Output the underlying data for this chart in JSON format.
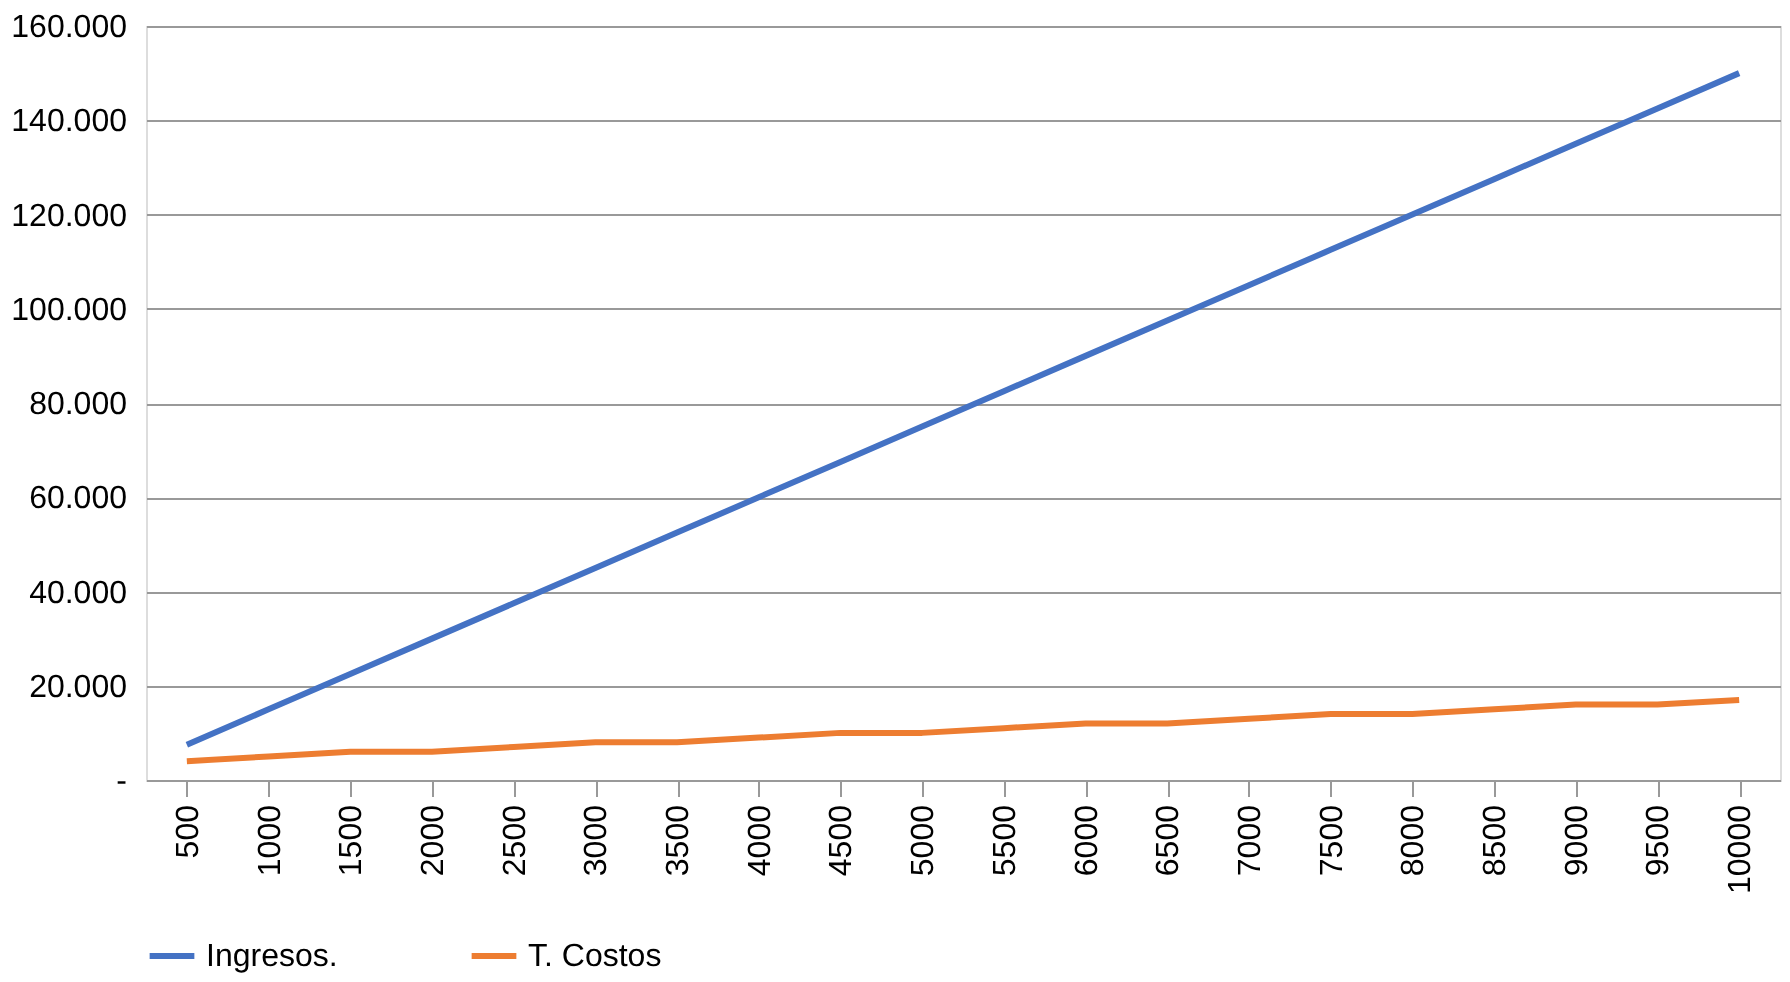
{
  "chart_data": {
    "type": "line",
    "categories": [
      "500",
      "1000",
      "1500",
      "2000",
      "2500",
      "3000",
      "3500",
      "4000",
      "4500",
      "5000",
      "5500",
      "6000",
      "6500",
      "7000",
      "7500",
      "8000",
      "8500",
      "9000",
      "9500",
      "10000"
    ],
    "series": [
      {
        "name": "Ingresos.",
        "color": "#4472c4",
        "values": [
          7500,
          15000,
          22500,
          30000,
          37500,
          45000,
          52500,
          60000,
          67500,
          75000,
          82500,
          90000,
          97500,
          105000,
          112500,
          120000,
          127500,
          135000,
          142500,
          150000
        ]
      },
      {
        "name": "T. Costos",
        "color": "#ed7d31",
        "values": [
          4000,
          5000,
          6000,
          6000,
          7000,
          8000,
          8000,
          9000,
          10000,
          10000,
          11000,
          12000,
          12000,
          13000,
          14000,
          14000,
          15000,
          16000,
          16000,
          17000
        ]
      }
    ],
    "ylim": [
      0,
      160000
    ],
    "yticks": [
      {
        "value": 0,
        "label": "-"
      },
      {
        "value": 20000,
        "label": "20.000"
      },
      {
        "value": 40000,
        "label": "40.000"
      },
      {
        "value": 60000,
        "label": "60.000"
      },
      {
        "value": 80000,
        "label": "80.000"
      },
      {
        "value": 100000,
        "label": "100.000"
      },
      {
        "value": 120000,
        "label": "120.000"
      },
      {
        "value": 140000,
        "label": "140.000"
      },
      {
        "value": 160000,
        "label": "160.000"
      }
    ],
    "grid": "y",
    "legend": "bottom",
    "marker": "none",
    "line_style": "solid"
  }
}
